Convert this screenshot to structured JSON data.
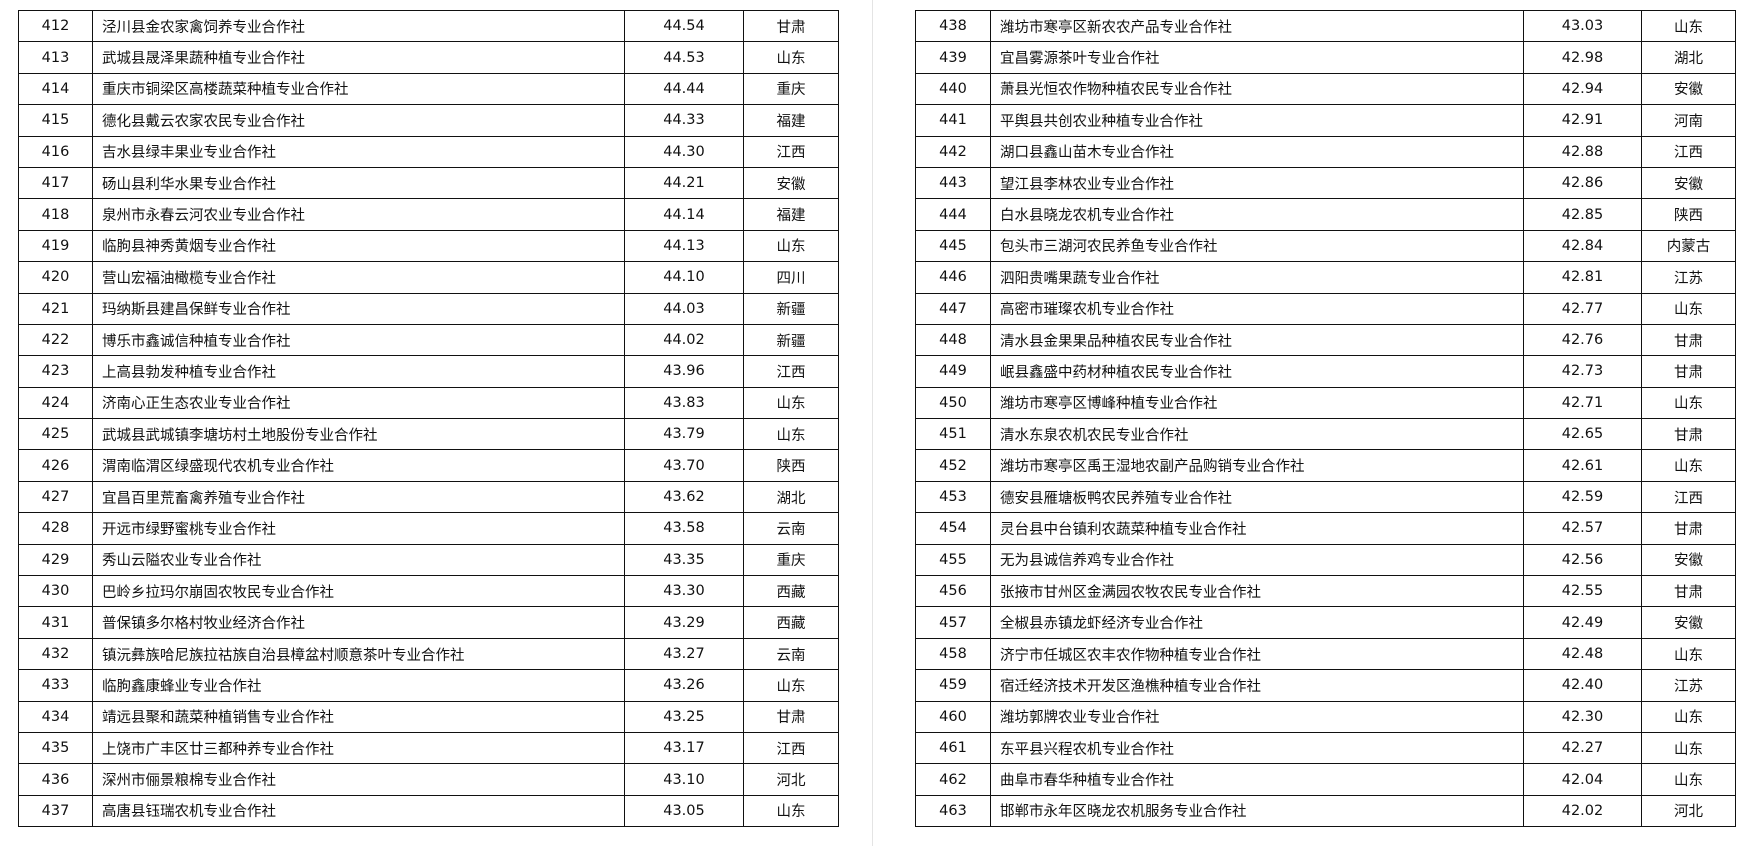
{
  "left_table": [
    {
      "no": "412",
      "name": "泾川县金农家禽饲养专业合作社",
      "score": "44.54",
      "province": "甘肃"
    },
    {
      "no": "413",
      "name": "武城县晟泽果蔬种植专业合作社",
      "score": "44.53",
      "province": "山东"
    },
    {
      "no": "414",
      "name": "重庆市铜梁区高楼蔬菜种植专业合作社",
      "score": "44.44",
      "province": "重庆"
    },
    {
      "no": "415",
      "name": "德化县戴云农家农民专业合作社",
      "score": "44.33",
      "province": "福建"
    },
    {
      "no": "416",
      "name": "吉水县绿丰果业专业合作社",
      "score": "44.30",
      "province": "江西"
    },
    {
      "no": "417",
      "name": "砀山县利华水果专业合作社",
      "score": "44.21",
      "province": "安徽"
    },
    {
      "no": "418",
      "name": "泉州市永春云河农业专业合作社",
      "score": "44.14",
      "province": "福建"
    },
    {
      "no": "419",
      "name": "临朐县神秀黄烟专业合作社",
      "score": "44.13",
      "province": "山东"
    },
    {
      "no": "420",
      "name": "营山宏福油橄榄专业合作社",
      "score": "44.10",
      "province": "四川"
    },
    {
      "no": "421",
      "name": "玛纳斯县建昌保鲜专业合作社",
      "score": "44.03",
      "province": "新疆"
    },
    {
      "no": "422",
      "name": "博乐市鑫诚信种植专业合作社",
      "score": "44.02",
      "province": "新疆"
    },
    {
      "no": "423",
      "name": "上高县勃发种植专业合作社",
      "score": "43.96",
      "province": "江西"
    },
    {
      "no": "424",
      "name": "济南心正生态农业专业合作社",
      "score": "43.83",
      "province": "山东"
    },
    {
      "no": "425",
      "name": "武城县武城镇李塘坊村土地股份专业合作社",
      "score": "43.79",
      "province": "山东"
    },
    {
      "no": "426",
      "name": "渭南临渭区绿盛现代农机专业合作社",
      "score": "43.70",
      "province": "陕西"
    },
    {
      "no": "427",
      "name": "宜昌百里荒畜禽养殖专业合作社",
      "score": "43.62",
      "province": "湖北"
    },
    {
      "no": "428",
      "name": "开远市绿野蜜桃专业合作社",
      "score": "43.58",
      "province": "云南"
    },
    {
      "no": "429",
      "name": "秀山云隘农业专业合作社",
      "score": "43.35",
      "province": "重庆"
    },
    {
      "no": "430",
      "name": "巴岭乡拉玛尔崩固农牧民专业合作社",
      "score": "43.30",
      "province": "西藏"
    },
    {
      "no": "431",
      "name": "普保镇多尔格村牧业经济合作社",
      "score": "43.29",
      "province": "西藏"
    },
    {
      "no": "432",
      "name": "镇沅彝族哈尼族拉祜族自治县樟盆村顺意茶叶专业合作社",
      "score": "43.27",
      "province": "云南"
    },
    {
      "no": "433",
      "name": "临朐鑫康蜂业专业合作社",
      "score": "43.26",
      "province": "山东"
    },
    {
      "no": "434",
      "name": "靖远县聚和蔬菜种植销售专业合作社",
      "score": "43.25",
      "province": "甘肃"
    },
    {
      "no": "435",
      "name": "上饶市广丰区廿三都种养专业合作社",
      "score": "43.17",
      "province": "江西"
    },
    {
      "no": "436",
      "name": "深州市俪景粮棉专业合作社",
      "score": "43.10",
      "province": "河北"
    },
    {
      "no": "437",
      "name": "高唐县钰瑞农机专业合作社",
      "score": "43.05",
      "province": "山东"
    }
  ],
  "right_table": [
    {
      "no": "438",
      "name": "潍坊市寒亭区新农农产品专业合作社",
      "score": "43.03",
      "province": "山东"
    },
    {
      "no": "439",
      "name": "宜昌雾源茶叶专业合作社",
      "score": "42.98",
      "province": "湖北"
    },
    {
      "no": "440",
      "name": "萧县光恒农作物种植农民专业合作社",
      "score": "42.94",
      "province": "安徽"
    },
    {
      "no": "441",
      "name": "平舆县共创农业种植专业合作社",
      "score": "42.91",
      "province": "河南"
    },
    {
      "no": "442",
      "name": "湖口县鑫山苗木专业合作社",
      "score": "42.88",
      "province": "江西"
    },
    {
      "no": "443",
      "name": "望江县李林农业专业合作社",
      "score": "42.86",
      "province": "安徽"
    },
    {
      "no": "444",
      "name": "白水县晓龙农机专业合作社",
      "score": "42.85",
      "province": "陕西"
    },
    {
      "no": "445",
      "name": "包头市三湖河农民养鱼专业合作社",
      "score": "42.84",
      "province": "内蒙古"
    },
    {
      "no": "446",
      "name": "泗阳贵嘴果蔬专业合作社",
      "score": "42.81",
      "province": "江苏"
    },
    {
      "no": "447",
      "name": "高密市璀璨农机专业合作社",
      "score": "42.77",
      "province": "山东"
    },
    {
      "no": "448",
      "name": "清水县金果果品种植农民专业合作社",
      "score": "42.76",
      "province": "甘肃"
    },
    {
      "no": "449",
      "name": "岷县鑫盛中药材种植农民专业合作社",
      "score": "42.73",
      "province": "甘肃"
    },
    {
      "no": "450",
      "name": "潍坊市寒亭区博峰种植专业合作社",
      "score": "42.71",
      "province": "山东"
    },
    {
      "no": "451",
      "name": "清水东泉农机农民专业合作社",
      "score": "42.65",
      "province": "甘肃"
    },
    {
      "no": "452",
      "name": "潍坊市寒亭区禹王湿地农副产品购销专业合作社",
      "score": "42.61",
      "province": "山东"
    },
    {
      "no": "453",
      "name": "德安县雁塘板鸭农民养殖专业合作社",
      "score": "42.59",
      "province": "江西"
    },
    {
      "no": "454",
      "name": "灵台县中台镇利农蔬菜种植专业合作社",
      "score": "42.57",
      "province": "甘肃"
    },
    {
      "no": "455",
      "name": "无为县诚信养鸡专业合作社",
      "score": "42.56",
      "province": "安徽"
    },
    {
      "no": "456",
      "name": "张掖市甘州区金满园农牧农民专业合作社",
      "score": "42.55",
      "province": "甘肃"
    },
    {
      "no": "457",
      "name": "全椒县赤镇龙虾经济专业合作社",
      "score": "42.49",
      "province": "安徽"
    },
    {
      "no": "458",
      "name": "济宁市任城区农丰农作物种植专业合作社",
      "score": "42.48",
      "province": "山东"
    },
    {
      "no": "459",
      "name": "宿迁经济技术开发区渔樵种植专业合作社",
      "score": "42.40",
      "province": "江苏"
    },
    {
      "no": "460",
      "name": "潍坊郭牌农业专业合作社",
      "score": "42.30",
      "province": "山东"
    },
    {
      "no": "461",
      "name": "东平县兴程农机专业合作社",
      "score": "42.27",
      "province": "山东"
    },
    {
      "no": "462",
      "name": "曲阜市春华种植专业合作社",
      "score": "42.04",
      "province": "山东"
    },
    {
      "no": "463",
      "name": "邯郸市永年区晓龙农机服务专业合作社",
      "score": "42.02",
      "province": "河北"
    }
  ]
}
